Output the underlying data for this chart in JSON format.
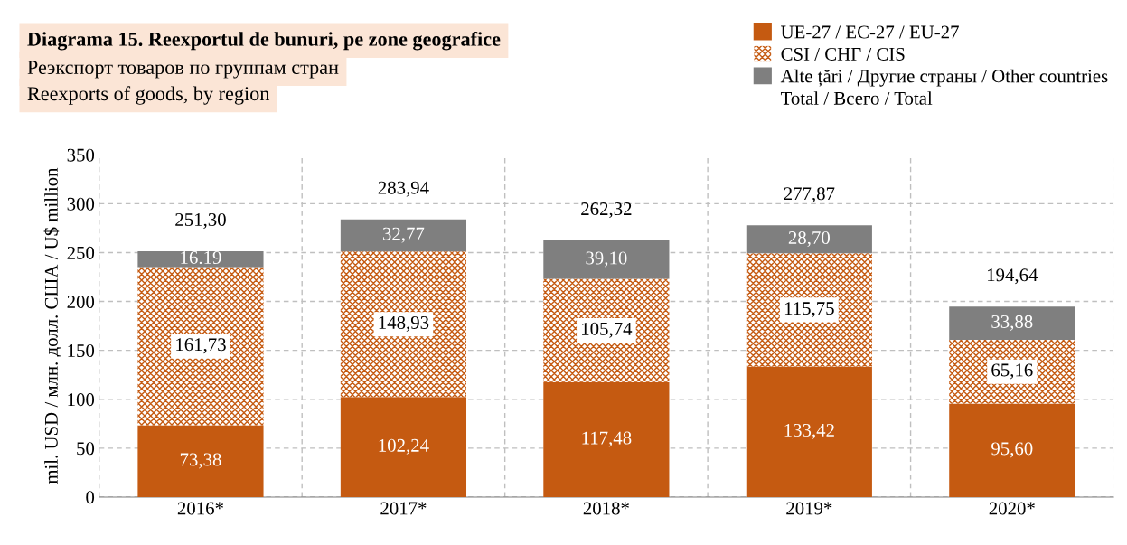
{
  "chart_data": {
    "type": "bar",
    "title": "Diagrama 15. Reexportul de bunuri, pe zone geografice",
    "subtitle": "Реэкспорт товаров по группам стран\nReexports of goods, by region",
    "ylabel": "mil. USD / млн. долл. США / U$ million",
    "categories": [
      "2016*",
      "2017*",
      "2018*",
      "2019*",
      "2020*"
    ],
    "stacked": true,
    "series": [
      {
        "name": "UE-27 / EC-27 / EU-27",
        "color": "#c55a11",
        "values": [
          73.38,
          102.24,
          117.48,
          133.42,
          95.6
        ],
        "value_labels": [
          "73,38",
          "102,24",
          "117,48",
          "133,42",
          "95,60"
        ]
      },
      {
        "name": "CSI / СНГ / CIS",
        "color": "#c55a11",
        "values": [
          161.73,
          148.93,
          105.74,
          115.75,
          65.16
        ],
        "value_labels": [
          "161,73",
          "148,93",
          "105,74",
          "115,75",
          "65,16"
        ]
      },
      {
        "name": "Alte țări / Другие страны / Other countries",
        "color": "#7f7f7f",
        "values": [
          16.19,
          32.77,
          39.1,
          28.7,
          33.88
        ],
        "value_labels": [
          "16.19",
          "32,77",
          "39,10",
          "28,70",
          "33,88"
        ]
      }
    ],
    "totals": [
      "251,30",
      "283,94",
      "262,32",
      "277,87",
      "194,64"
    ],
    "annotations": [
      "Total / Всего / Total"
    ],
    "ylim": [
      0,
      350
    ],
    "yticks": [
      0,
      50,
      100,
      150,
      200,
      250,
      300,
      350
    ],
    "grid": true,
    "legend": "top right"
  }
}
